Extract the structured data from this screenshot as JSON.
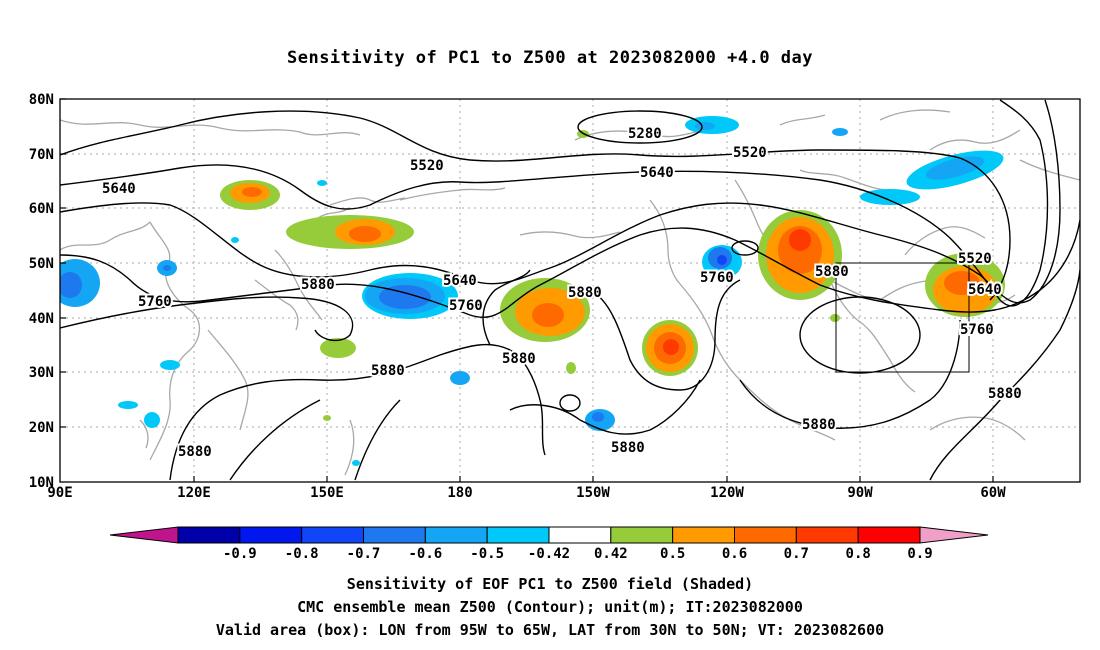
{
  "title": "Sensitivity of PC1 to Z500 at 2023082000 +4.0 day",
  "lat_labels": [
    "80N",
    "70N",
    "60N",
    "50N",
    "40N",
    "30N",
    "20N",
    "10N"
  ],
  "lon_labels": [
    "90E",
    "120E",
    "150E",
    "180",
    "150W",
    "120W",
    "90W",
    "60W"
  ],
  "contour_labels": [
    "5280",
    "5520",
    "5520",
    "5520",
    "5640",
    "5640",
    "5640",
    "5640",
    "5760",
    "5760",
    "5760",
    "5760",
    "5880",
    "5880",
    "5880",
    "5880",
    "5880",
    "5880",
    "5880",
    "5880",
    "5880"
  ],
  "colorbar": {
    "labels": [
      "-0.9",
      "-0.8",
      "-0.7",
      "-0.6",
      "-0.5",
      "-0.42",
      "0.42",
      "0.5",
      "0.6",
      "0.7",
      "0.8",
      "0.9"
    ],
    "colors": [
      "#0000aa",
      "#0018ee",
      "#1046f8",
      "#1e78ee",
      "#14a6f4",
      "#00c8f8",
      "#ffffff",
      "#96cc3a",
      "#ff9a00",
      "#ff6a00",
      "#ff3a00",
      "#ff0000"
    ],
    "low_end_color": "#c0148c",
    "high_end_color": "#f0a0c8"
  },
  "captions": [
    "Sensitivity of EOF PC1 to Z500 field (Shaded)",
    "CMC ensemble mean Z500 (Contour); unit(m); IT:2023082000",
    "Valid area (box): LON from 95W to 65W, LAT from 30N to 50N; VT: 2023082600"
  ],
  "valid_box": {
    "lon_from": "95W",
    "lon_to": "65W",
    "lat_from": "30N",
    "lat_to": "50N"
  }
}
